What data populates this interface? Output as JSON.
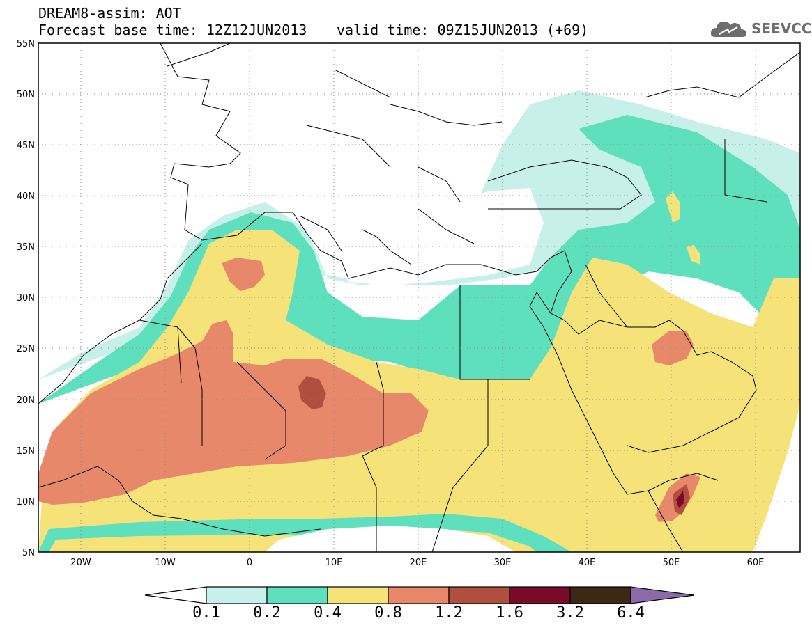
{
  "header": {
    "model_line": "DREAM8-assim: AOT",
    "base_line": "Forecast base time: 12Z12JUN2013",
    "valid_line": "valid time: 09Z15JUN2013 (+69)"
  },
  "logo": {
    "icon": "cloud-icon",
    "text": "SEEVCCC"
  },
  "map": {
    "lon_range": [
      -25,
      65
    ],
    "lat_range": [
      5,
      55
    ],
    "lat_labels": [
      "55N",
      "50N",
      "45N",
      "40N",
      "35N",
      "30N",
      "25N",
      "20N",
      "15N",
      "10N",
      "5N"
    ],
    "lon_labels": [
      "20W",
      "10W",
      "0",
      "10E",
      "20E",
      "30E",
      "40E",
      "50E",
      "60E"
    ],
    "grid": "dotted"
  },
  "colorbar": {
    "levels": [
      "0.1",
      "0.2",
      "0.4",
      "0.8",
      "1.2",
      "1.6",
      "3.2",
      "6.4"
    ],
    "colors": [
      "#ffffff",
      "#c8f0eb",
      "#5ee0be",
      "#f5e278",
      "#e8886a",
      "#b04f3f",
      "#7a0a28",
      "#3c2814",
      "#8a6aa8"
    ]
  }
}
